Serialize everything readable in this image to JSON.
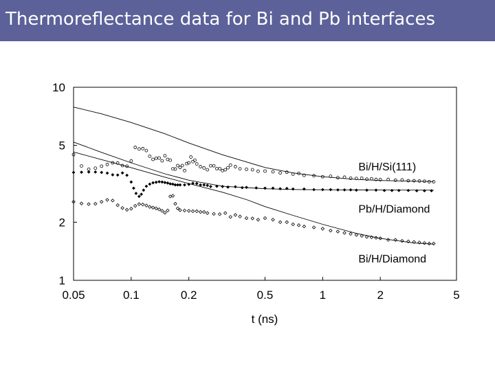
{
  "slide": {
    "title": "Thermoreflectance data for Bi and Pb interfaces",
    "title_bar_color": "#5c6199"
  },
  "chart_data": {
    "type": "scatter",
    "title": "",
    "xlabel": "t (ns)",
    "ylabel": "",
    "x_scale": "log",
    "y_scale": "log",
    "xlim": [
      0.05,
      5
    ],
    "ylim": [
      1,
      10
    ],
    "x_ticks": [
      {
        "value": 0.05,
        "label": "0.05"
      },
      {
        "value": 0.1,
        "label": "0.1"
      },
      {
        "value": 0.2,
        "label": "0.2"
      },
      {
        "value": 0.5,
        "label": "0.5"
      },
      {
        "value": 1,
        "label": "1"
      },
      {
        "value": 2,
        "label": "2"
      },
      {
        "value": 5,
        "label": "5"
      }
    ],
    "y_ticks": [
      {
        "value": 1,
        "label": "1"
      },
      {
        "value": 2,
        "label": "2"
      },
      {
        "value": 5,
        "label": "5"
      },
      {
        "value": 10,
        "label": "10"
      }
    ],
    "grid": false,
    "legend": "none",
    "annotations": [
      {
        "text": "Bi/H/Si(111)",
        "x": 1.0,
        "y": 3.9
      },
      {
        "text": "Pb/H/Diamond",
        "x": 1.0,
        "y": 2.35
      },
      {
        "text": "Bi/H/Diamond",
        "x": 1.0,
        "y": 1.3
      }
    ],
    "series": [
      {
        "marker": "open-circle",
        "points": [
          [
            0.05,
            4.48
          ],
          [
            0.055,
            3.91
          ],
          [
            0.06,
            3.76
          ],
          [
            0.065,
            3.81
          ],
          [
            0.07,
            3.9
          ],
          [
            0.075,
            3.98
          ],
          [
            0.08,
            4.06
          ],
          [
            0.085,
            4.05
          ],
          [
            0.09,
            3.93
          ],
          [
            0.095,
            3.9
          ],
          [
            0.1,
            4.15
          ],
          [
            0.105,
            4.88
          ],
          [
            0.11,
            4.79
          ],
          [
            0.115,
            4.81
          ],
          [
            0.12,
            4.7
          ],
          [
            0.125,
            4.39
          ],
          [
            0.13,
            4.23
          ],
          [
            0.135,
            4.29
          ],
          [
            0.14,
            4.3
          ],
          [
            0.145,
            4.16
          ],
          [
            0.15,
            4.42
          ],
          [
            0.155,
            4.23
          ],
          [
            0.16,
            4.19
          ],
          [
            0.165,
            3.78
          ],
          [
            0.17,
            3.77
          ],
          [
            0.175,
            3.93
          ],
          [
            0.18,
            3.84
          ],
          [
            0.185,
            3.93
          ],
          [
            0.19,
            3.7
          ],
          [
            0.195,
            4.02
          ],
          [
            0.2,
            4.06
          ],
          [
            0.205,
            4.35
          ],
          [
            0.21,
            4.12
          ],
          [
            0.215,
            4.19
          ],
          [
            0.22,
            4.01
          ],
          [
            0.23,
            3.88
          ],
          [
            0.24,
            3.82
          ],
          [
            0.25,
            3.74
          ],
          [
            0.26,
            3.92
          ],
          [
            0.27,
            3.92
          ],
          [
            0.28,
            3.79
          ],
          [
            0.29,
            3.79
          ],
          [
            0.3,
            3.7
          ],
          [
            0.31,
            3.74
          ],
          [
            0.32,
            3.83
          ],
          [
            0.33,
            3.95
          ],
          [
            0.35,
            3.88
          ],
          [
            0.37,
            3.78
          ],
          [
            0.4,
            3.76
          ],
          [
            0.43,
            3.74
          ],
          [
            0.46,
            3.67
          ],
          [
            0.5,
            3.68
          ],
          [
            0.55,
            3.65
          ],
          [
            0.6,
            3.6
          ],
          [
            0.65,
            3.63
          ],
          [
            0.7,
            3.55
          ],
          [
            0.75,
            3.58
          ],
          [
            0.8,
            3.5
          ],
          [
            0.9,
            3.48
          ],
          [
            1.0,
            3.44
          ],
          [
            1.1,
            3.46
          ],
          [
            1.2,
            3.4
          ],
          [
            1.3,
            3.42
          ],
          [
            1.4,
            3.38
          ],
          [
            1.5,
            3.37
          ],
          [
            1.6,
            3.38
          ],
          [
            1.7,
            3.34
          ],
          [
            1.8,
            3.36
          ],
          [
            1.9,
            3.33
          ],
          [
            2.0,
            3.32
          ],
          [
            2.2,
            3.33
          ],
          [
            2.4,
            3.3
          ],
          [
            2.6,
            3.31
          ],
          [
            2.8,
            3.28
          ],
          [
            3.0,
            3.28
          ],
          [
            3.2,
            3.27
          ],
          [
            3.4,
            3.26
          ],
          [
            3.6,
            3.24
          ],
          [
            3.8,
            3.24
          ]
        ]
      },
      {
        "marker": "filled-diamond",
        "points": [
          [
            0.05,
            3.62
          ],
          [
            0.055,
            3.63
          ],
          [
            0.06,
            3.64
          ],
          [
            0.065,
            3.64
          ],
          [
            0.07,
            3.62
          ],
          [
            0.075,
            3.59
          ],
          [
            0.08,
            3.52
          ],
          [
            0.085,
            3.51
          ],
          [
            0.09,
            3.6
          ],
          [
            0.095,
            3.5
          ],
          [
            0.1,
            3.23
          ],
          [
            0.103,
            3.0
          ],
          [
            0.106,
            2.82
          ],
          [
            0.11,
            2.72
          ],
          [
            0.113,
            2.79
          ],
          [
            0.116,
            2.93
          ],
          [
            0.12,
            3.07
          ],
          [
            0.125,
            3.15
          ],
          [
            0.13,
            3.2
          ],
          [
            0.135,
            3.22
          ],
          [
            0.14,
            3.24
          ],
          [
            0.145,
            3.23
          ],
          [
            0.15,
            3.21
          ],
          [
            0.155,
            3.19
          ],
          [
            0.16,
            3.16
          ],
          [
            0.165,
            3.15
          ],
          [
            0.17,
            3.12
          ],
          [
            0.175,
            3.12
          ],
          [
            0.18,
            3.12
          ],
          [
            0.19,
            3.12
          ],
          [
            0.2,
            3.14
          ],
          [
            0.21,
            3.18
          ],
          [
            0.22,
            3.17
          ],
          [
            0.23,
            3.12
          ],
          [
            0.24,
            3.12
          ],
          [
            0.25,
            3.1
          ],
          [
            0.26,
            3.06
          ],
          [
            0.28,
            3.07
          ],
          [
            0.3,
            3.06
          ],
          [
            0.32,
            3.04
          ],
          [
            0.35,
            3.05
          ],
          [
            0.38,
            3.02
          ],
          [
            0.4,
            3.03
          ],
          [
            0.45,
            3.01
          ],
          [
            0.5,
            3.0
          ],
          [
            0.55,
            3.0
          ],
          [
            0.6,
            2.98
          ],
          [
            0.65,
            2.99
          ],
          [
            0.7,
            2.97
          ],
          [
            0.8,
            2.97
          ],
          [
            0.9,
            2.95
          ],
          [
            1.0,
            2.95
          ],
          [
            1.1,
            2.95
          ],
          [
            1.2,
            2.94
          ],
          [
            1.3,
            2.94
          ],
          [
            1.4,
            2.94
          ],
          [
            1.5,
            2.93
          ],
          [
            1.7,
            2.93
          ],
          [
            1.9,
            2.93
          ],
          [
            2.1,
            2.92
          ],
          [
            2.3,
            2.92
          ],
          [
            2.5,
            2.92
          ],
          [
            2.8,
            2.92
          ],
          [
            3.1,
            2.91
          ],
          [
            3.4,
            2.91
          ],
          [
            3.7,
            2.91
          ]
        ]
      },
      {
        "marker": "open-diamond",
        "points": [
          [
            0.05,
            2.55
          ],
          [
            0.055,
            2.5
          ],
          [
            0.06,
            2.48
          ],
          [
            0.065,
            2.49
          ],
          [
            0.07,
            2.55
          ],
          [
            0.075,
            2.61
          ],
          [
            0.08,
            2.59
          ],
          [
            0.085,
            2.45
          ],
          [
            0.09,
            2.37
          ],
          [
            0.095,
            2.32
          ],
          [
            0.1,
            2.35
          ],
          [
            0.105,
            2.43
          ],
          [
            0.11,
            2.48
          ],
          [
            0.115,
            2.47
          ],
          [
            0.12,
            2.44
          ],
          [
            0.125,
            2.4
          ],
          [
            0.13,
            2.38
          ],
          [
            0.135,
            2.36
          ],
          [
            0.14,
            2.33
          ],
          [
            0.145,
            2.29
          ],
          [
            0.15,
            2.24
          ],
          [
            0.155,
            2.3
          ],
          [
            0.16,
            2.72
          ],
          [
            0.165,
            2.74
          ],
          [
            0.17,
            2.49
          ],
          [
            0.175,
            2.36
          ],
          [
            0.18,
            2.31
          ],
          [
            0.19,
            2.3
          ],
          [
            0.2,
            2.29
          ],
          [
            0.21,
            2.28
          ],
          [
            0.22,
            2.28
          ],
          [
            0.23,
            2.26
          ],
          [
            0.24,
            2.26
          ],
          [
            0.25,
            2.23
          ],
          [
            0.27,
            2.21
          ],
          [
            0.29,
            2.2
          ],
          [
            0.31,
            2.23
          ],
          [
            0.33,
            2.13
          ],
          [
            0.35,
            2.18
          ],
          [
            0.37,
            2.14
          ],
          [
            0.4,
            2.1
          ],
          [
            0.43,
            2.09
          ],
          [
            0.46,
            2.06
          ],
          [
            0.5,
            2.1
          ],
          [
            0.55,
            2.06
          ],
          [
            0.6,
            2.0
          ],
          [
            0.65,
            2.0
          ],
          [
            0.7,
            1.95
          ],
          [
            0.75,
            1.93
          ],
          [
            0.8,
            1.9
          ],
          [
            0.9,
            1.88
          ],
          [
            1.0,
            1.85
          ],
          [
            1.1,
            1.81
          ],
          [
            1.2,
            1.79
          ],
          [
            1.3,
            1.76
          ],
          [
            1.4,
            1.74
          ],
          [
            1.5,
            1.72
          ],
          [
            1.6,
            1.7
          ],
          [
            1.7,
            1.68
          ],
          [
            1.8,
            1.67
          ],
          [
            1.9,
            1.66
          ],
          [
            2.0,
            1.65
          ],
          [
            2.2,
            1.62
          ],
          [
            2.4,
            1.62
          ],
          [
            2.6,
            1.6
          ],
          [
            2.8,
            1.59
          ],
          [
            3.0,
            1.58
          ],
          [
            3.2,
            1.57
          ],
          [
            3.4,
            1.56
          ],
          [
            3.6,
            1.55
          ],
          [
            3.8,
            1.55
          ]
        ]
      }
    ],
    "fit_curves": [
      {
        "points": [
          [
            0.05,
            7.9
          ],
          [
            0.07,
            7.28
          ],
          [
            0.1,
            6.57
          ],
          [
            0.15,
            5.74
          ],
          [
            0.2,
            5.14
          ],
          [
            0.3,
            4.47
          ],
          [
            0.5,
            3.84
          ],
          [
            0.7,
            3.6
          ],
          [
            1.0,
            3.44
          ],
          [
            1.5,
            3.33
          ],
          [
            2.0,
            3.29
          ],
          [
            3.0,
            3.26
          ],
          [
            3.8,
            3.25
          ]
        ]
      },
      {
        "points": [
          [
            0.05,
            5.2
          ],
          [
            0.07,
            4.6
          ],
          [
            0.1,
            4.06
          ],
          [
            0.15,
            3.56
          ],
          [
            0.2,
            3.3
          ],
          [
            0.3,
            3.07
          ],
          [
            0.5,
            2.98
          ],
          [
            0.7,
            2.955
          ],
          [
            1.0,
            2.945
          ],
          [
            2.0,
            2.935
          ],
          [
            3.8,
            2.93
          ]
        ]
      },
      {
        "points": [
          [
            0.05,
            4.62
          ],
          [
            0.07,
            4.22
          ],
          [
            0.1,
            3.83
          ],
          [
            0.15,
            3.42
          ],
          [
            0.2,
            3.17
          ],
          [
            0.3,
            2.86
          ],
          [
            0.4,
            2.62
          ],
          [
            0.5,
            2.41
          ],
          [
            0.7,
            2.17
          ],
          [
            1.0,
            1.95
          ],
          [
            1.5,
            1.75
          ],
          [
            2.0,
            1.65
          ],
          [
            3.0,
            1.56
          ],
          [
            3.8,
            1.54
          ]
        ]
      }
    ]
  }
}
